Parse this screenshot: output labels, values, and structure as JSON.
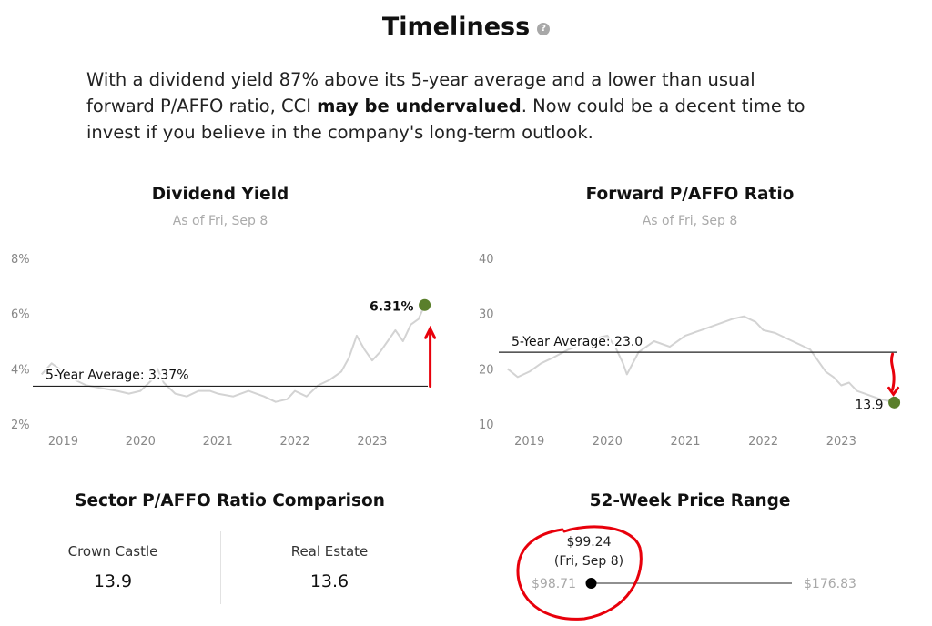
{
  "header": {
    "title": "Timeliness",
    "help_icon": "question-circle-icon"
  },
  "intro": {
    "part1": "With a dividend yield 87% above its 5-year average and a lower than usual forward P/AFFO ratio, CCI ",
    "bold": "may be undervalued",
    "part2": ". Now could be a decent time to invest if you believe in the company's long-term outlook."
  },
  "colors": {
    "line": "#d3d3d3",
    "marker": "#5a7f2b",
    "annotation": "#e8000b",
    "axis_text": "#888888"
  },
  "chart_data": [
    {
      "type": "line",
      "title": "Dividend Yield",
      "subtitle": "As of Fri, Sep 8",
      "y_unit": "%",
      "ylim": [
        2,
        8
      ],
      "y_ticks": [
        2,
        4,
        6,
        8
      ],
      "y_tick_labels": [
        "2%",
        "4%",
        "6%",
        "8%"
      ],
      "xlim": [
        2018.7,
        2023.72
      ],
      "x_ticks": [
        2019,
        2020,
        2021,
        2022,
        2023
      ],
      "x_tick_labels": [
        "2019",
        "2020",
        "2021",
        "2022",
        "2023"
      ],
      "grid": false,
      "reference_line": {
        "label": "5-Year Average: 3.37%",
        "value": 3.37
      },
      "current": {
        "x": 2023.68,
        "y": 6.31,
        "label": "6.31%"
      },
      "series": [
        {
          "x": [
            2018.72,
            2018.85,
            2019.0,
            2019.15,
            2019.3,
            2019.5,
            2019.7,
            2019.85,
            2020.0,
            2020.15,
            2020.22,
            2020.3,
            2020.45,
            2020.6,
            2020.75,
            2020.9,
            2021.0,
            2021.2,
            2021.4,
            2021.6,
            2021.75,
            2021.9,
            2022.0,
            2022.15,
            2022.3,
            2022.45,
            2022.6,
            2022.7,
            2022.8,
            2022.9,
            2023.0,
            2023.1,
            2023.2,
            2023.3,
            2023.4,
            2023.5,
            2023.6,
            2023.68
          ],
          "y": [
            3.8,
            4.2,
            3.9,
            3.6,
            3.4,
            3.3,
            3.2,
            3.1,
            3.2,
            3.6,
            4.0,
            3.5,
            3.1,
            3.0,
            3.2,
            3.2,
            3.1,
            3.0,
            3.2,
            3.0,
            2.8,
            2.9,
            3.2,
            3.0,
            3.4,
            3.6,
            3.9,
            4.4,
            5.2,
            4.7,
            4.3,
            4.6,
            5.0,
            5.4,
            5.0,
            5.6,
            5.8,
            6.31
          ]
        }
      ]
    },
    {
      "type": "line",
      "title": "Forward P/AFFO Ratio",
      "subtitle": "As of Fri, Sep 8",
      "ylim": [
        10,
        40
      ],
      "y_ticks": [
        10,
        20,
        30,
        40
      ],
      "y_tick_labels": [
        "10",
        "20",
        "30",
        "40"
      ],
      "xlim": [
        2018.7,
        2023.72
      ],
      "x_ticks": [
        2019,
        2020,
        2021,
        2022,
        2023
      ],
      "x_tick_labels": [
        "2019",
        "2020",
        "2021",
        "2022",
        "2023"
      ],
      "grid": false,
      "reference_line": {
        "label": "5-Year Average: 23.0",
        "value": 23.0
      },
      "current": {
        "x": 2023.68,
        "y": 13.9,
        "label": "13.9"
      },
      "series": [
        {
          "x": [
            2018.72,
            2018.85,
            2019.0,
            2019.15,
            2019.3,
            2019.5,
            2019.7,
            2019.85,
            2020.0,
            2020.1,
            2020.2,
            2020.25,
            2020.4,
            2020.6,
            2020.8,
            2021.0,
            2021.2,
            2021.4,
            2021.6,
            2021.75,
            2021.9,
            2022.0,
            2022.15,
            2022.3,
            2022.45,
            2022.6,
            2022.7,
            2022.8,
            2022.9,
            2023.0,
            2023.1,
            2023.2,
            2023.3,
            2023.4,
            2023.5,
            2023.6,
            2023.68
          ],
          "y": [
            20.0,
            18.5,
            19.5,
            21.0,
            22.0,
            23.5,
            24.5,
            25.5,
            26.0,
            24.0,
            21.0,
            19.0,
            23.0,
            25.0,
            24.0,
            26.0,
            27.0,
            28.0,
            29.0,
            29.5,
            28.5,
            27.0,
            26.5,
            25.5,
            24.5,
            23.5,
            21.5,
            19.5,
            18.5,
            17.0,
            17.5,
            16.0,
            15.5,
            15.0,
            14.5,
            14.2,
            13.9
          ]
        }
      ]
    }
  ],
  "sector": {
    "title": "Sector P/AFFO Ratio Comparison",
    "items": [
      {
        "label": "Crown Castle",
        "value": "13.9"
      },
      {
        "label": "Real Estate",
        "value": "13.6"
      }
    ]
  },
  "price_range": {
    "title": "52-Week Price Range",
    "current_price": "$99.24",
    "current_date": "(Fri, Sep 8)",
    "low": "$98.71",
    "high": "$176.83",
    "low_value": 98.71,
    "high_value": 176.83,
    "current_value": 99.24
  }
}
